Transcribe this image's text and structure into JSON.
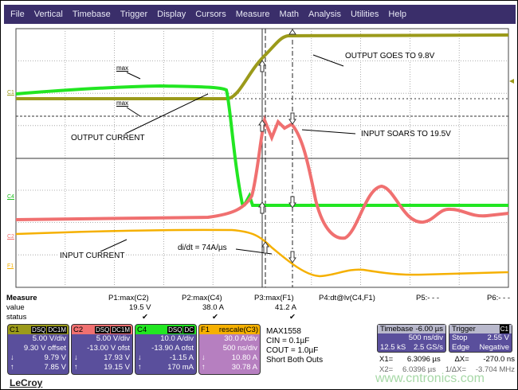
{
  "menu": [
    "File",
    "Vertical",
    "Timebase",
    "Trigger",
    "Display",
    "Cursors",
    "Measure",
    "Math",
    "Analysis",
    "Utilities",
    "Help"
  ],
  "annotations": {
    "output": "OUTPUT GOES TO 9.8V",
    "output_current": "OUTPUT CURRENT",
    "input_soars": "INPUT SOARS TO 19.5V",
    "input_current": "INPUT CURRENT",
    "didt": "di/dt = 74A/µs",
    "max": "max"
  },
  "channel_markers": {
    "c1": "C1",
    "c4": "C4",
    "c2": "C2",
    "f1": "F1"
  },
  "colors": {
    "C1": "#9b9a1a",
    "C2": "#f07070",
    "C4": "#22e622",
    "F1": "#f5b000",
    "panel": "#5a4f9c",
    "menubar": "#3a2e6a"
  },
  "measure": {
    "header": "Measure",
    "value_label": "value",
    "status_label": "status",
    "params": [
      {
        "name": "P1:max(C2)",
        "value": "19.5 V",
        "status": "✔"
      },
      {
        "name": "P2:max(C4)",
        "value": "38.0 A",
        "status": "✔"
      },
      {
        "name": "P3:max(F1)",
        "value": "41.2 A",
        "status": "✔"
      },
      {
        "name": "P4:dt@lv(C4,F1)",
        "value": "",
        "status": ""
      },
      {
        "name": "P5:- - -",
        "value": "",
        "status": ""
      },
      {
        "name": "P6:- - -",
        "value": "",
        "status": ""
      }
    ]
  },
  "channels": [
    {
      "id": "C1",
      "tags": [
        "DSQ",
        "DC1M"
      ],
      "vdiv": "5.00 V/div",
      "offset": "9.30 V offset",
      "down": "9.79 V",
      "up": "7.85 V"
    },
    {
      "id": "C2",
      "tags": [
        "DSQ",
        "DC1M"
      ],
      "vdiv": "5.00 V/div",
      "offset": "-13.00 V ofst",
      "down": "17.93 V",
      "up": "19.15 V"
    },
    {
      "id": "C4",
      "tags": [
        "DSQ",
        "DC"
      ],
      "vdiv": "10.0 A/div",
      "offset": "-13.90 A ofst",
      "down": "-1.15 A",
      "up": "170 mA"
    },
    {
      "id": "F1",
      "tags": [
        "rescale(C3)"
      ],
      "vdiv": "30.0 A/div",
      "offset": "500 ns/div",
      "down": "10.80 A",
      "up": "30.78 A"
    }
  ],
  "info": {
    "part": "MAX1558",
    "cin": "CIN = 0.1µF",
    "cout": "COUT = 1.0µF",
    "note": "Short Both Outs"
  },
  "timebase": {
    "label": "Timebase",
    "delay": "-6.00 µs",
    "tdiv": "500 ns/div",
    "samples": "12.5 kS",
    "rate": "2.5 GS/s"
  },
  "trigger": {
    "label": "Trigger",
    "src": "C1",
    "mode": "Stop",
    "level": "2.55 V",
    "type": "Edge",
    "slope": "Negative"
  },
  "cursors": {
    "x1": "X1=",
    "x1v": "6.3096 µs",
    "dx": "ΔX=",
    "dxv": "-270.0 ns",
    "x2": "X2=",
    "x2v": "6.0396 µs",
    "inv": "1/ΔX=",
    "invv": "-3.704 MHz"
  },
  "logo": "LeCroy",
  "watermark": "www.cntronics.com"
}
